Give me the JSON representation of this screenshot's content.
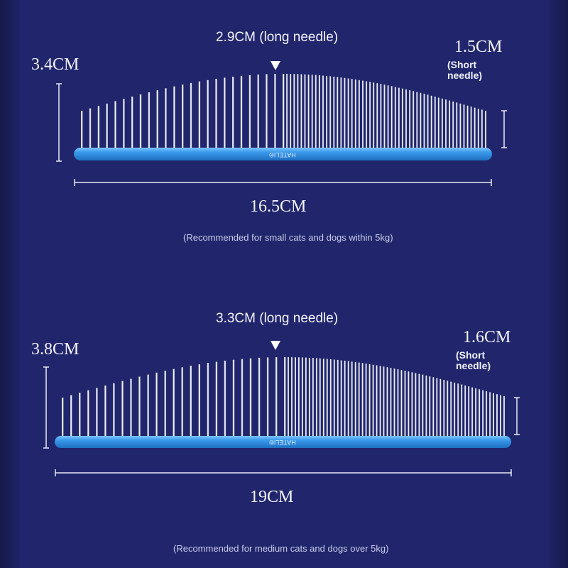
{
  "combs": [
    {
      "long_needle_label": "2.9CM (long needle)",
      "height_label": "3.4CM",
      "short_needle_value": "1.5CM",
      "short_needle_caption": "(Short needle)",
      "width_label": "16.5CM",
      "brand": "HATELI®",
      "recommendation": "(Recommended for small cats and dogs within 5kg)"
    },
    {
      "long_needle_label": "3.3CM (long needle)",
      "height_label": "3.8CM",
      "short_needle_value": "1.6CM",
      "short_needle_caption": "(Short needle)",
      "width_label": "19CM",
      "brand": "HATELI®",
      "recommendation": "(Recommended for medium cats and dogs over 5kg)"
    }
  ],
  "colors": {
    "background": "#21266c",
    "bar": "#2f8fe0",
    "needle": "#e6e8f2",
    "text": "#f4f4fa"
  }
}
